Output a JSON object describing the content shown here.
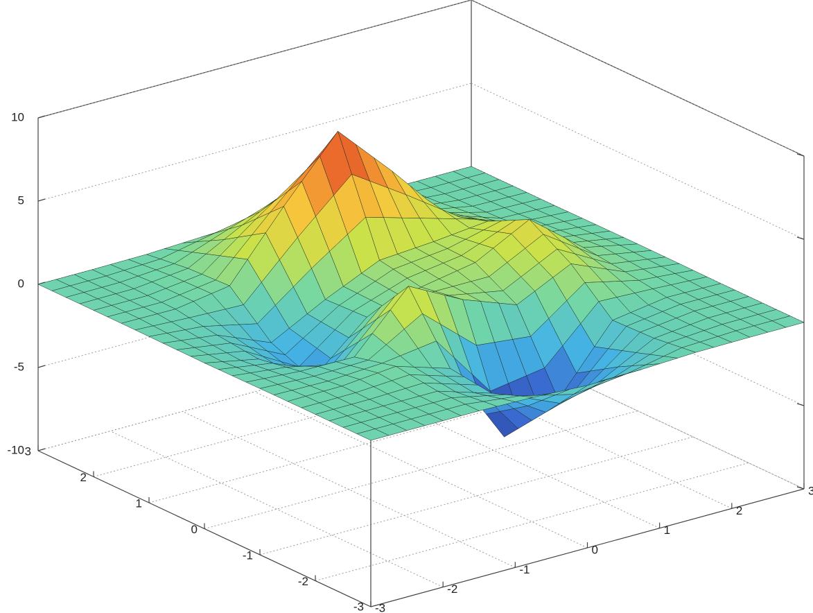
{
  "chart_data": {
    "type": "surface",
    "x": [
      -3,
      -2.25,
      -1.5,
      -0.75,
      0,
      0.75,
      1.5,
      2.25,
      3
    ],
    "y": [
      -3,
      -2.25,
      -1.5,
      -0.75,
      0,
      0.75,
      1.5,
      2.25,
      3
    ],
    "z": [
      [
        0,
        0,
        0,
        -0.07,
        -0.24,
        -0.17,
        -0.03,
        0,
        0
      ],
      [
        0,
        0.01,
        0.01,
        -1.0,
        -3.02,
        -2.05,
        -0.35,
        -0.01,
        0
      ],
      [
        0,
        0.03,
        0.33,
        -0.68,
        -5.68,
        -4.32,
        -0.44,
        0.05,
        0
      ],
      [
        -0.02,
        -0.25,
        -0.28,
        3.09,
        1.4,
        0.2,
        1.78,
        0.41,
        0.02
      ],
      [
        -0.04,
        -0.69,
        -2.77,
        0.06,
        0.98,
        1.57,
        3.27,
        0.7,
        0.03
      ],
      [
        -0.02,
        -0.42,
        -1.76,
        -0.05,
        1.42,
        1.65,
        1.99,
        0.4,
        0.02
      ],
      [
        0,
        -0.03,
        0.48,
        4.37,
        8.0,
        4.72,
        1.19,
        0.12,
        0
      ],
      [
        0,
        0.02,
        0.36,
        2.07,
        3.65,
        2.09,
        0.41,
        0.03,
        0
      ],
      [
        0,
        0,
        0.03,
        0.17,
        0.3,
        0.17,
        0.03,
        0,
        0
      ]
    ],
    "xlim": [
      -3,
      3
    ],
    "ylim": [
      -3,
      3
    ],
    "zlim": [
      -10,
      10
    ],
    "xticks": [
      -3,
      -2,
      -1,
      0,
      1,
      2,
      3
    ],
    "yticks": [
      -3,
      -2,
      -1,
      0,
      1,
      2,
      3
    ],
    "zticks": [
      -10,
      -5,
      0,
      5,
      10
    ],
    "grid": true,
    "colormap": [
      "#2b3a98",
      "#3a6bd0",
      "#45b4e4",
      "#72d6a8",
      "#c9e24b",
      "#f6c83c",
      "#ef7a2e",
      "#cf1f1f"
    ],
    "edge_color": "#1c2b22"
  }
}
